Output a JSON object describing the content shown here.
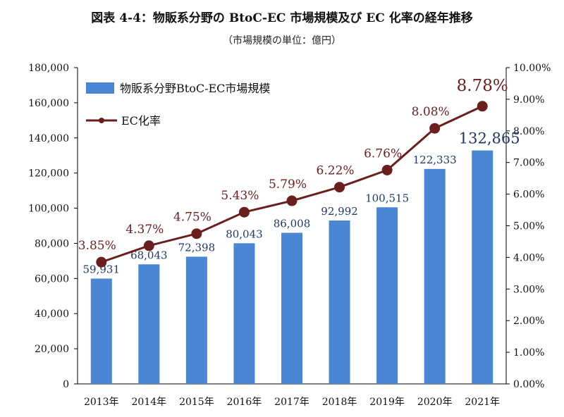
{
  "chart_data": {
    "type": "bar",
    "title": "図表 4-4：物販系分野の BtoC-EC 市場規模及び EC 化率の経年推移",
    "subtitle": "（市場規模の単位：億円）",
    "categories": [
      "2013年",
      "2014年",
      "2015年",
      "2016年",
      "2017年",
      "2018年",
      "2019年",
      "2020年",
      "2021年"
    ],
    "series": [
      {
        "name": "物販系分野BtoC-EC市場規模",
        "type": "bar",
        "axis": "left",
        "color": "#4a86d4",
        "values": [
          59931,
          68043,
          72398,
          80043,
          86008,
          92992,
          100515,
          122333,
          132865
        ],
        "labels": [
          "59,931",
          "68,043",
          "72,398",
          "80,043",
          "86,008",
          "92,992",
          "100,515",
          "122,333",
          "132,865"
        ]
      },
      {
        "name": "EC化率",
        "type": "line",
        "axis": "right",
        "color": "#6b1e1e",
        "values": [
          3.85,
          4.37,
          4.75,
          5.43,
          5.79,
          6.22,
          6.76,
          8.08,
          8.78
        ],
        "labels": [
          "3.85%",
          "4.37%",
          "4.75%",
          "5.43%",
          "5.79%",
          "6.22%",
          "6.76%",
          "8.08%",
          "8.78%"
        ]
      }
    ],
    "y_left": {
      "min": 0,
      "max": 180000,
      "ticks": [
        "0",
        "20,000",
        "40,000",
        "60,000",
        "80,000",
        "100,000",
        "120,000",
        "140,000",
        "160,000",
        "180,000"
      ]
    },
    "y_right": {
      "min": 0,
      "max": 10,
      "ticks": [
        "0.00%",
        "1.00%",
        "2.00%",
        "3.00%",
        "4.00%",
        "5.00%",
        "6.00%",
        "7.00%",
        "8.00%",
        "9.00%",
        "10.00%"
      ]
    },
    "grid": false,
    "legend": "top-left"
  }
}
